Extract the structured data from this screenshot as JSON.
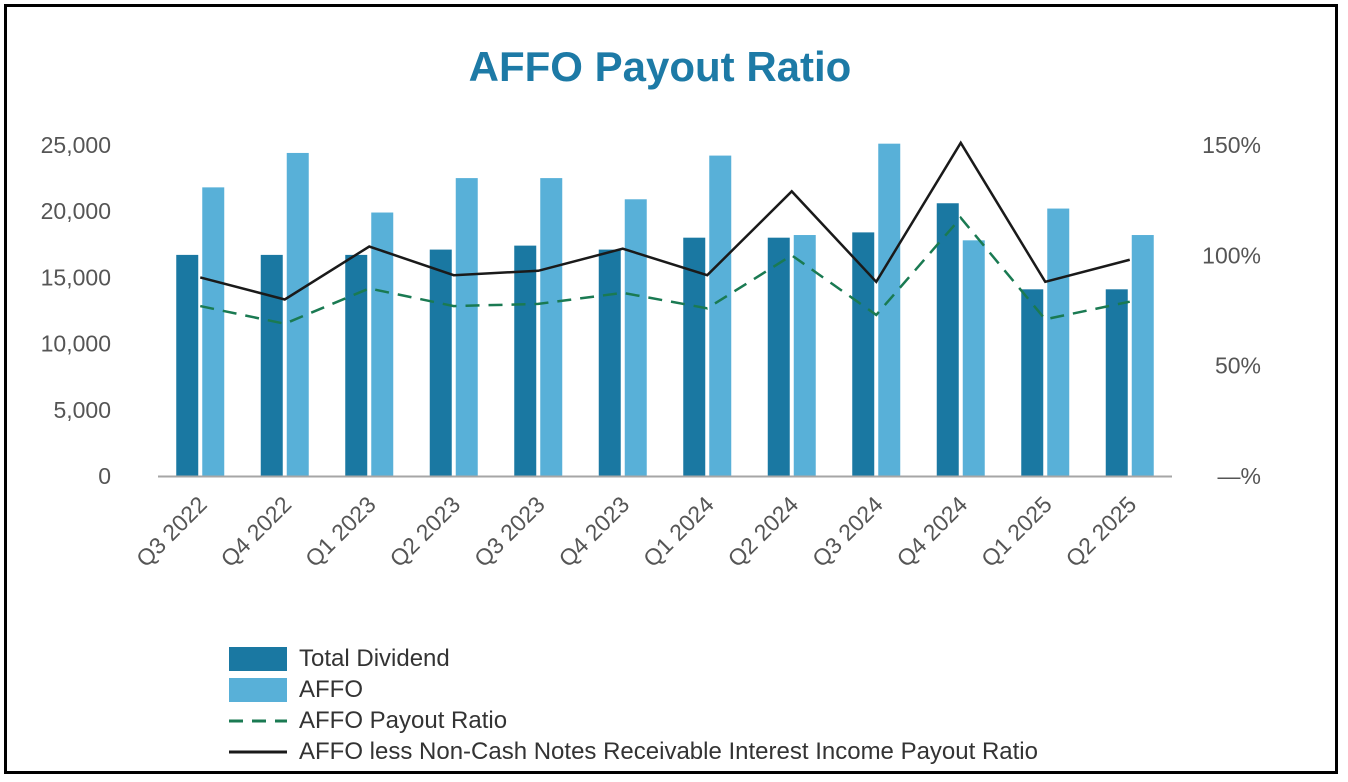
{
  "chart_data": {
    "type": "bar",
    "title": "AFFO Payout Ratio",
    "categories": [
      "Q3 2022",
      "Q4 2022",
      "Q1 2023",
      "Q2 2023",
      "Q3 2023",
      "Q4 2023",
      "Q1 2024",
      "Q2 2024",
      "Q3 2024",
      "Q4 2024",
      "Q1 2025",
      "Q2 2025"
    ],
    "series": [
      {
        "name": "Total Dividend",
        "kind": "bar",
        "axis": "left",
        "color": "#1a78a2",
        "values": [
          16700,
          16700,
          16700,
          17100,
          17400,
          17100,
          18000,
          18000,
          18400,
          20600,
          14100,
          14100
        ]
      },
      {
        "name": "AFFO",
        "kind": "bar",
        "axis": "left",
        "color": "#58b0d8",
        "values": [
          21800,
          24400,
          19900,
          22500,
          22500,
          20900,
          24200,
          18200,
          25100,
          17800,
          20200,
          18200
        ]
      },
      {
        "name": "AFFO Payout Ratio",
        "kind": "line",
        "axis": "right",
        "color": "#1a7a52",
        "dash": true,
        "values": [
          77,
          69,
          85,
          77,
          78,
          83,
          76,
          100,
          73,
          117,
          71,
          79
        ]
      },
      {
        "name": "AFFO less Non-Cash Notes Receivable Interest Income Payout Ratio",
        "kind": "line",
        "axis": "right",
        "color": "#1a1a1a",
        "dash": false,
        "values": [
          90,
          80,
          104,
          91,
          93,
          103,
          91,
          129,
          88,
          151,
          88,
          98
        ]
      }
    ],
    "left_axis": {
      "ylim": [
        0,
        25000
      ],
      "ticks": [
        0,
        5000,
        10000,
        15000,
        20000,
        25000
      ],
      "tick_labels": [
        "0",
        "5,000",
        "10,000",
        "15,000",
        "20,000",
        "25,000"
      ]
    },
    "right_axis": {
      "ylim": [
        0,
        150
      ],
      "ticks": [
        0,
        50,
        100,
        150
      ],
      "tick_labels": [
        "—%",
        "50%",
        "100%",
        "150%"
      ]
    },
    "grid": false,
    "legend_position": "bottom-left"
  },
  "colors": {
    "title": "#1d7aa6",
    "axis": "#a6a6a6",
    "tick_text": "#555555"
  }
}
